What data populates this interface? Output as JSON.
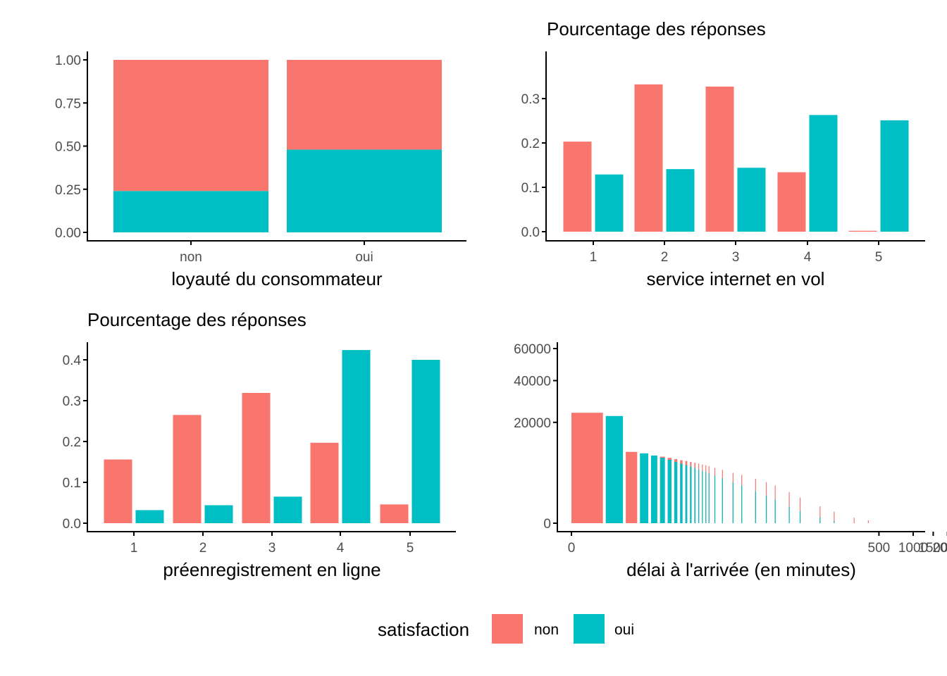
{
  "colors": {
    "non": "#F8766D",
    "oui": "#00BFC4",
    "axis": "#000000",
    "tick_text": "#4D4D4D"
  },
  "legend": {
    "title": "satisfaction",
    "items": [
      {
        "key": "non",
        "label": "non"
      },
      {
        "key": "oui",
        "label": "oui"
      }
    ]
  },
  "chart_data": [
    {
      "type": "bar",
      "stacked": true,
      "title": "",
      "xlabel": "loyauté du consommateur",
      "ylabel": "",
      "categories": [
        "non",
        "oui"
      ],
      "series": [
        {
          "name": "oui",
          "values": [
            0.24,
            0.48
          ]
        },
        {
          "name": "non",
          "values": [
            0.76,
            0.52
          ]
        }
      ],
      "ylim": [
        0,
        1
      ],
      "yticks": [
        "0.00",
        "0.25",
        "0.50",
        "0.75",
        "1.00"
      ]
    },
    {
      "type": "bar",
      "title": "Pourcentage des réponses",
      "xlabel": "service internet en vol",
      "ylabel": "",
      "categories": [
        "1",
        "2",
        "3",
        "4",
        "5"
      ],
      "series": [
        {
          "name": "non",
          "values": [
            0.203,
            0.332,
            0.327,
            0.134,
            0.002
          ]
        },
        {
          "name": "oui",
          "values": [
            0.129,
            0.141,
            0.144,
            0.263,
            0.251
          ]
        }
      ],
      "ylim": [
        0,
        0.35
      ],
      "yticks": [
        "0.0",
        "0.1",
        "0.2",
        "0.3"
      ]
    },
    {
      "type": "bar",
      "title": "Pourcentage des réponses",
      "xlabel": "préenregistrement en ligne",
      "ylabel": "",
      "categories": [
        "1",
        "2",
        "3",
        "4",
        "5"
      ],
      "series": [
        {
          "name": "non",
          "values": [
            0.156,
            0.265,
            0.319,
            0.197,
            0.046
          ]
        },
        {
          "name": "oui",
          "values": [
            0.032,
            0.044,
            0.065,
            0.424,
            0.4
          ]
        }
      ],
      "ylim": [
        0,
        0.45
      ],
      "yticks": [
        "0.0",
        "0.1",
        "0.2",
        "0.3",
        "0.4"
      ]
    },
    {
      "type": "bar",
      "title": "",
      "xlabel": "délai à l'arrivée (en minutes)",
      "ylabel": "",
      "x_scale": "log1p",
      "y_scale": "sqrt",
      "ylim": [
        0,
        65000
      ],
      "yticks": [
        "0",
        "20000",
        "40000",
        "60000"
      ],
      "xlim": [
        -5,
        1600
      ],
      "xticks": [
        "0",
        "500",
        "1000",
        "1500",
        "2000"
      ],
      "series": [
        {
          "name": "non",
          "x": [
            0,
            2,
            3,
            4,
            5,
            6,
            7,
            8,
            9,
            10,
            11,
            12,
            13,
            14,
            15,
            17,
            20,
            25,
            30,
            40,
            50,
            60,
            80,
            100,
            150,
            200,
            300,
            400
          ],
          "values": [
            24000,
            10000,
            9500,
            9000,
            8700,
            8400,
            8100,
            7800,
            7600,
            7400,
            7200,
            7000,
            6800,
            6600,
            6400,
            6000,
            5600,
            5000,
            4600,
            3900,
            3300,
            2800,
            1900,
            1300,
            560,
            260,
            60,
            15
          ]
        },
        {
          "name": "oui",
          "x": [
            1,
            3,
            4,
            5,
            6,
            7,
            8,
            9,
            10,
            11,
            12,
            13,
            14,
            15,
            17,
            20,
            25,
            30,
            40,
            50,
            60,
            80,
            100,
            150,
            200
          ],
          "values": [
            22600,
            9600,
            9000,
            8400,
            7900,
            7400,
            7000,
            6600,
            6300,
            6000,
            5700,
            5400,
            5150,
            4900,
            4500,
            4000,
            3300,
            2800,
            2000,
            1500,
            1100,
            550,
            280,
            70,
            12
          ]
        }
      ]
    }
  ]
}
